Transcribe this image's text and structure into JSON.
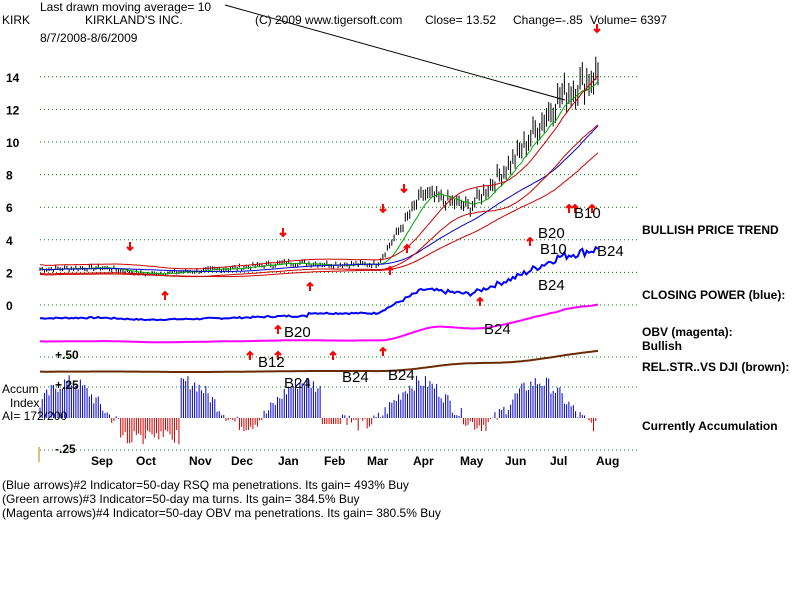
{
  "header": {
    "symbol": "KIRK",
    "ma_note": "Last drawn moving average= 10",
    "company": "KIRKLAND'S INC.",
    "date_range": "8/7/2008-8/6/2009",
    "source": "(C) 2009 www.tigersoft.com",
    "close": "Close=  13.52",
    "change": "Change=-.85",
    "volume": "Volume= 6397"
  },
  "side_labels": {
    "price_trend": "BULLISH PRICE TREND",
    "closing_power": "CLOSING POWER (blue):",
    "obv": "OBV (magenta):",
    "obv_status": "Bullish",
    "rel_str": "REL.STR..VS DJI (brown):",
    "accumulation": "Currently Accumulation"
  },
  "accum": {
    "title1": "Accum",
    "title2": "Index",
    "ai": "AI= 172/200",
    "tick_high": "+.50",
    "tick_mid": "+.25",
    "tick_low": "-.25"
  },
  "signals": {
    "b10_a": "B10",
    "b20_a": "B20",
    "b10_b": "B10",
    "b24_a": "B24",
    "b24_b": "B24",
    "b20_b": "B20",
    "b24_c": "B24",
    "b12": "B12",
    "b24_d": "B24",
    "b24_e": "B24",
    "b24_f": "B24"
  },
  "footer": [
    "(Blue arrows)#2 Indicator=50-day RSQ ma penetrations. Its gain= 493% Buy",
    "(Green arrows)#3 Indicator=50-day ma turns. Its gain= 384.5% Buy",
    "(Magenta arrows)#4 Indicator=50-day OBV ma penetrations. Its gain= 380.5% Buy"
  ],
  "chart_data": {
    "type": "line",
    "title": "KIRKLAND'S INC.",
    "ylim": [
      0,
      15
    ],
    "y_ticks": [
      0,
      2,
      4,
      6,
      8,
      10,
      12,
      14
    ],
    "x_ticks": [
      "Sep",
      "Oct",
      "Nov",
      "Dec",
      "Jan",
      "Feb",
      "Mar",
      "Apr",
      "May",
      "Jun",
      "Jul",
      "Aug"
    ],
    "grid": true,
    "series": [
      {
        "name": "Close",
        "color": "#000000",
        "x": [
          "Aug",
          "Sep",
          "Oct",
          "Nov",
          "Dec",
          "Jan",
          "Feb",
          "Mar",
          "Apr",
          "May",
          "Jun",
          "Jul",
          "Aug"
        ],
        "values": [
          2.2,
          2.3,
          1.9,
          2.1,
          2.3,
          2.6,
          2.5,
          2.5,
          6.8,
          6.0,
          9.0,
          12.8,
          14.2
        ]
      }
    ]
  },
  "colors": {
    "price": "#000000",
    "upper_band": "#cc0000",
    "lower_band": "#cc0000",
    "ma_green": "#00aa00",
    "ma_blue": "#0000cc",
    "closing_power": "#0000ff",
    "obv": "#ff00ff",
    "rel_str": "#6b2a00",
    "accum_pos": "#0000cc",
    "accum_neg": "#cc0000",
    "arrow": "#ff0000",
    "grid": "#008000"
  }
}
